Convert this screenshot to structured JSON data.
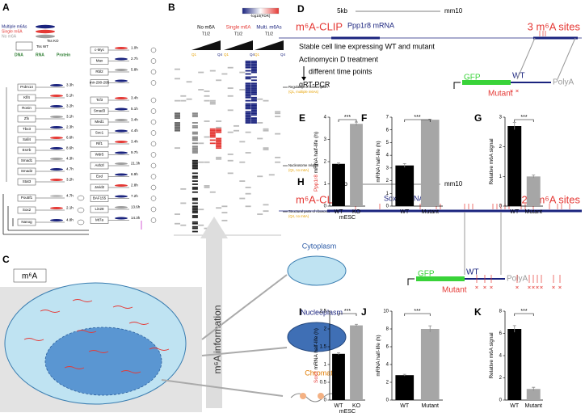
{
  "panels": {
    "A": {
      "letter": "A",
      "legend": [
        "Multiple m6As",
        "Single m6A",
        "No m6A"
      ],
      "layers": [
        "DNA",
        "RNA",
        "Protein"
      ],
      "tss": [
        "Tss WT",
        "Tss KO"
      ],
      "left_genes": [
        {
          "name": "Prdm14",
          "half_life": "3.3h"
        },
        {
          "name": "Klf4",
          "half_life": "5.1h"
        },
        {
          "name": "Ronin",
          "half_life": "3.2h"
        },
        {
          "name": "Zfx",
          "half_life": "3.1h"
        },
        {
          "name": "Tbx3",
          "half_life": "2.3h"
        },
        {
          "name": "Sall4",
          "half_life": "6.6h"
        },
        {
          "name": "Esrrb",
          "half_life": "8.6h"
        },
        {
          "name": "Smad1",
          "half_life": "4.3h"
        },
        {
          "name": "Smad2",
          "half_life": "4.7h"
        },
        {
          "name": "Stat3",
          "half_life": "3.2h"
        }
      ],
      "right_genes": [
        {
          "name": "c-Myc",
          "half_life": "1.0h"
        },
        {
          "name": "Max",
          "half_life": "2.7h"
        },
        {
          "name": "Rbl2",
          "half_life": "5.8h"
        },
        {
          "name": "mir-290-295",
          "half_life": ""
        },
        {
          "name": "Tcf3",
          "half_life": "3.4h"
        },
        {
          "name": "Smad3",
          "half_life": "5.1h"
        },
        {
          "name": "Med1",
          "half_life": "3.4h"
        },
        {
          "name": "Soc1",
          "half_life": "4.4h"
        },
        {
          "name": "Rif1",
          "half_life": "3.4h"
        },
        {
          "name": "Wdr5",
          "half_life": "9.7h"
        },
        {
          "name": "Ash2l",
          "half_life": "21.3h"
        },
        {
          "name": "Eed",
          "half_life": "6.9h"
        },
        {
          "name": "Jarid2",
          "half_life": "2.8h"
        },
        {
          "name": "BAF155",
          "half_life": "7.2h"
        },
        {
          "name": "Lin28",
          "half_life": "13.6h"
        },
        {
          "name": "Mt7a",
          "half_life": "14.3h"
        }
      ],
      "core_genes": [
        {
          "name": "Pou5f1",
          "half_life": "4.7h"
        },
        {
          "name": "Sox2",
          "half_life": "2.1h"
        },
        {
          "name": "Nanog",
          "half_life": "4.8h"
        }
      ]
    },
    "B": {
      "letter": "B",
      "groups": [
        "No m6A",
        "Single m6A",
        "Multi. m6As"
      ],
      "t_half": "T1/2",
      "quartiles": [
        "Q1",
        "Q4"
      ],
      "colorbar_title": "-log10(FDR)",
      "annotations": [
        {
          "title": "Regulation of transcription",
          "detail": "(Q1, multiple m6As)"
        },
        {
          "title": "Nucleosome related",
          "detail": "(Q1, no m6A)"
        },
        {
          "title": "Structural parts of ribosome",
          "detail": "(Q4, no m6A)"
        }
      ]
    },
    "C": {
      "letter": "C",
      "mark": "m⁶A",
      "arrow_label": "m⁶A information",
      "compartments": [
        "Cytoplasm",
        "Nucleoplasm",
        "Chromatin"
      ]
    },
    "D": {
      "letter": "D",
      "scale": "5kb",
      "genome": "mm10",
      "clip": "m⁶A-CLIP",
      "gene": "Ppp1r8 mRNA",
      "sites": "3 m⁶A sites",
      "steps": [
        "Stable cell line expressing WT and mutant",
        "Actinomycin D treatment",
        "different time points",
        "qRT-PCR"
      ],
      "construct": [
        "GFP",
        "WT",
        "PolyA",
        "Mutant"
      ]
    },
    "H": {
      "letter": "H",
      "scale": "1 kb",
      "genome": "mm10",
      "clip": "m⁶A-CLIP",
      "gene": "Sox2 mRNA",
      "sites": "20 m⁶A sites",
      "construct": [
        "GFP",
        "WT",
        "PolyA",
        "Mutant"
      ]
    },
    "E": {
      "letter": "E",
      "type": "bar",
      "categories": [
        "WT",
        "KO"
      ],
      "values": [
        1.9,
        3.7
      ],
      "errors": [
        0.04,
        0.08
      ],
      "colors": [
        "#000000",
        "#a6a6a6"
      ],
      "ylim": [
        0,
        4
      ],
      "yticks": [
        0,
        1,
        2,
        3,
        4
      ],
      "ylabel_gene": "Ppp1r8",
      "ylabel": "mRNA half-life (h)",
      "xlabel": "mESC",
      "significance": "***"
    },
    "F": {
      "letter": "F",
      "type": "bar",
      "categories": [
        "WT",
        "Mutant"
      ],
      "values": [
        3.2,
        6.8
      ],
      "errors": [
        0.15,
        0.05
      ],
      "colors": [
        "#000000",
        "#a6a6a6"
      ],
      "ylim": [
        0,
        7
      ],
      "yticks": [
        0,
        1,
        2,
        3,
        4,
        5,
        6,
        7
      ],
      "ylabel": "mRNA half-life (h)",
      "significance": "***"
    },
    "G": {
      "letter": "G",
      "type": "bar",
      "categories": [
        "WT",
        "Mutant"
      ],
      "values": [
        2.7,
        1.0
      ],
      "errors": [
        0.12,
        0.05
      ],
      "colors": [
        "#000000",
        "#a6a6a6"
      ],
      "ylim": [
        0,
        3
      ],
      "yticks": [
        0,
        1,
        2,
        3
      ],
      "ylabel": "Relative m6A signal",
      "significance": "***"
    },
    "I": {
      "letter": "I",
      "type": "bar",
      "categories": [
        "WT",
        "KO"
      ],
      "values": [
        1.3,
        2.1
      ],
      "errors": [
        0.03,
        0.03
      ],
      "colors": [
        "#000000",
        "#a6a6a6"
      ],
      "ylim": [
        0,
        2.5
      ],
      "yticks": [
        0,
        0.5,
        1,
        1.5,
        2,
        2.5
      ],
      "ylabel_gene": "Sox2",
      "ylabel": "mRNA half-life (h)",
      "xlabel": "mESC",
      "significance": "***"
    },
    "J": {
      "letter": "J",
      "type": "bar",
      "categories": [
        "WT",
        "Mutant"
      ],
      "values": [
        2.8,
        8.0
      ],
      "errors": [
        0.1,
        0.35
      ],
      "colors": [
        "#000000",
        "#a6a6a6"
      ],
      "ylim": [
        0,
        10
      ],
      "yticks": [
        0,
        2,
        4,
        6,
        8,
        10
      ],
      "ylabel": "mRNA half-life (h)",
      "significance": "***"
    },
    "K": {
      "letter": "K",
      "type": "bar",
      "categories": [
        "WT",
        "Mutant"
      ],
      "values": [
        6.4,
        1.0
      ],
      "errors": [
        0.3,
        0.15
      ],
      "colors": [
        "#000000",
        "#a6a6a6"
      ],
      "ylim": [
        0,
        8
      ],
      "yticks": [
        0,
        2,
        4,
        6,
        8
      ],
      "ylabel": "Relative m6A signal",
      "significance": "***"
    }
  }
}
